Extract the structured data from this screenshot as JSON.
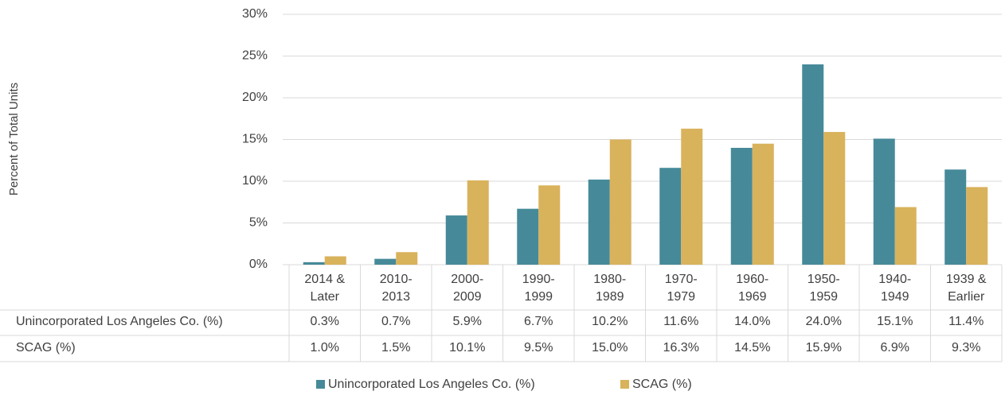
{
  "chart_data": {
    "type": "bar",
    "y_label": "Percent of Total Units",
    "categories": [
      [
        "2014 &",
        "Later"
      ],
      [
        "2010-",
        "2013"
      ],
      [
        "2000-",
        "2009"
      ],
      [
        "1990-",
        "1999"
      ],
      [
        "1980-",
        "1989"
      ],
      [
        "1970-",
        "1979"
      ],
      [
        "1960-",
        "1969"
      ],
      [
        "1950-",
        "1959"
      ],
      [
        "1940-",
        "1949"
      ],
      [
        "1939 &",
        "Earlier"
      ]
    ],
    "series": [
      {
        "name": "Unincorporated Los Angeles Co. (%)",
        "color": "#468a99",
        "values": [
          0.3,
          0.7,
          5.9,
          6.7,
          10.2,
          11.6,
          14.0,
          24.0,
          15.1,
          11.4
        ],
        "value_labels": [
          "0.3%",
          "0.7%",
          "5.9%",
          "6.7%",
          "10.2%",
          "11.6%",
          "14.0%",
          "24.0%",
          "15.1%",
          "11.4%"
        ]
      },
      {
        "name": "SCAG (%)",
        "color": "#d9b25c",
        "values": [
          1.0,
          1.5,
          10.1,
          9.5,
          15.0,
          16.3,
          14.5,
          15.9,
          6.9,
          9.3
        ],
        "value_labels": [
          "1.0%",
          "1.5%",
          "10.1%",
          "9.5%",
          "15.0%",
          "16.3%",
          "14.5%",
          "15.9%",
          "6.9%",
          "9.3%"
        ]
      }
    ],
    "ylim": [
      0,
      30
    ],
    "yticks": [
      {
        "value": 0,
        "label": "0%"
      },
      {
        "value": 5,
        "label": "5%"
      },
      {
        "value": 10,
        "label": "10%"
      },
      {
        "value": 15,
        "label": "15%"
      },
      {
        "value": 20,
        "label": "20%"
      },
      {
        "value": 25,
        "label": "25%"
      },
      {
        "value": 30,
        "label": "30%"
      }
    ],
    "grid": true,
    "legend": "bottom",
    "data_table": true
  }
}
